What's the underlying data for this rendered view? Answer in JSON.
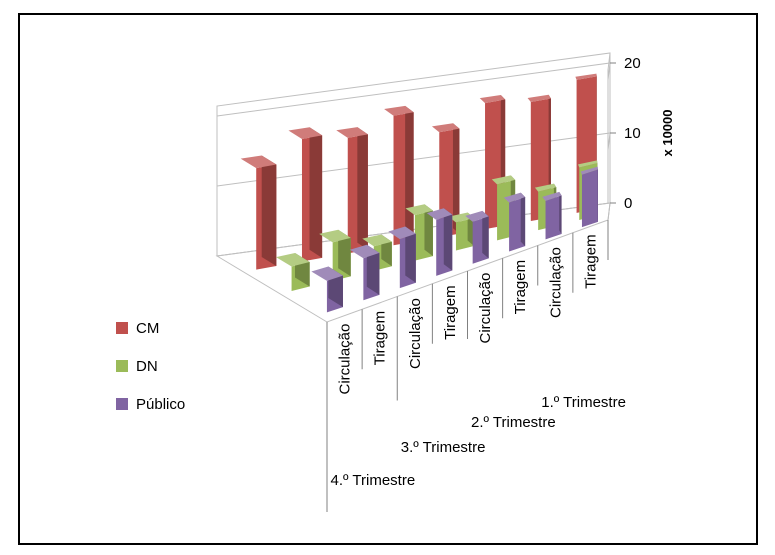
{
  "chart_data": {
    "type": "bar3d",
    "axis_unit": "x 10000",
    "ylim": [
      0,
      20
    ],
    "yticks": [
      "0",
      "10",
      "20"
    ],
    "grid": true,
    "legend_position": "left",
    "groups": [
      {
        "label": "4.º Trimestre",
        "categories": [
          "Circulação",
          "Tiragem"
        ]
      },
      {
        "label": "3.º Trimestre",
        "categories": [
          "Circulação",
          "Tiragem"
        ]
      },
      {
        "label": "2.º Trimestre",
        "categories": [
          "Circulação",
          "Tiragem"
        ]
      },
      {
        "label": "1.º Trimestre",
        "categories": [
          "Circulação",
          "Tiragem"
        ]
      }
    ],
    "categories": [
      "4.º Trimestre / Circulação",
      "4.º Trimestre / Tiragem",
      "3.º Trimestre / Circulação",
      "3.º Trimestre / Tiragem",
      "2.º Trimestre / Circulação",
      "2.º Trimestre / Tiragem",
      "1.º Trimestre / Circulação",
      "1.º Trimestre / Tiragem"
    ],
    "series": [
      {
        "name": "CM",
        "color": "#c0504d",
        "values": [
          14.5,
          17.5,
          16.5,
          18.5,
          15,
          18,
          17,
          19
        ]
      },
      {
        "name": "DN",
        "color": "#9bbb59",
        "values": [
          3.5,
          5.5,
          3.5,
          6.5,
          4,
          8,
          5.5,
          7.5
        ]
      },
      {
        "name": "Público",
        "color": "#8064a2",
        "values": [
          4.5,
          6,
          7,
          8,
          6,
          7,
          5.5,
          7.5
        ]
      }
    ]
  }
}
